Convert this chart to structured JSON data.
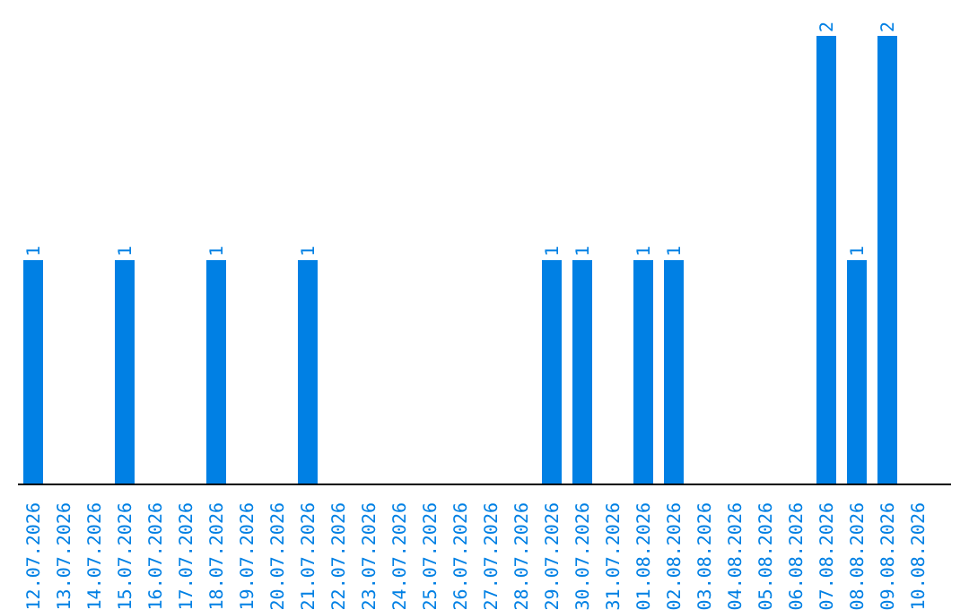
{
  "chart_data": {
    "type": "bar",
    "categories": [
      "12.07.2026",
      "13.07.2026",
      "14.07.2026",
      "15.07.2026",
      "16.07.2026",
      "17.07.2026",
      "18.07.2026",
      "19.07.2026",
      "20.07.2026",
      "21.07.2026",
      "22.07.2026",
      "23.07.2026",
      "24.07.2026",
      "25.07.2026",
      "26.07.2026",
      "27.07.2026",
      "28.07.2026",
      "29.07.2026",
      "30.07.2026",
      "31.07.2026",
      "01.08.2026",
      "02.08.2026",
      "03.08.2026",
      "04.08.2026",
      "05.08.2026",
      "06.08.2026",
      "07.08.2026",
      "08.08.2026",
      "09.08.2026",
      "10.08.2026"
    ],
    "values": [
      1,
      0,
      0,
      1,
      0,
      0,
      1,
      0,
      0,
      1,
      0,
      0,
      0,
      0,
      0,
      0,
      0,
      1,
      1,
      0,
      1,
      1,
      0,
      0,
      0,
      0,
      2,
      1,
      2,
      0
    ],
    "value_labels": [
      "1",
      null,
      null,
      "1",
      null,
      null,
      "1",
      null,
      null,
      "1",
      null,
      null,
      null,
      null,
      null,
      null,
      null,
      "1",
      "1",
      null,
      "1",
      "1",
      null,
      null,
      null,
      null,
      "2",
      "1",
      "2",
      null
    ],
    "color": "#0080e4",
    "tick_labels": "x",
    "grid": false,
    "legend": false
  }
}
